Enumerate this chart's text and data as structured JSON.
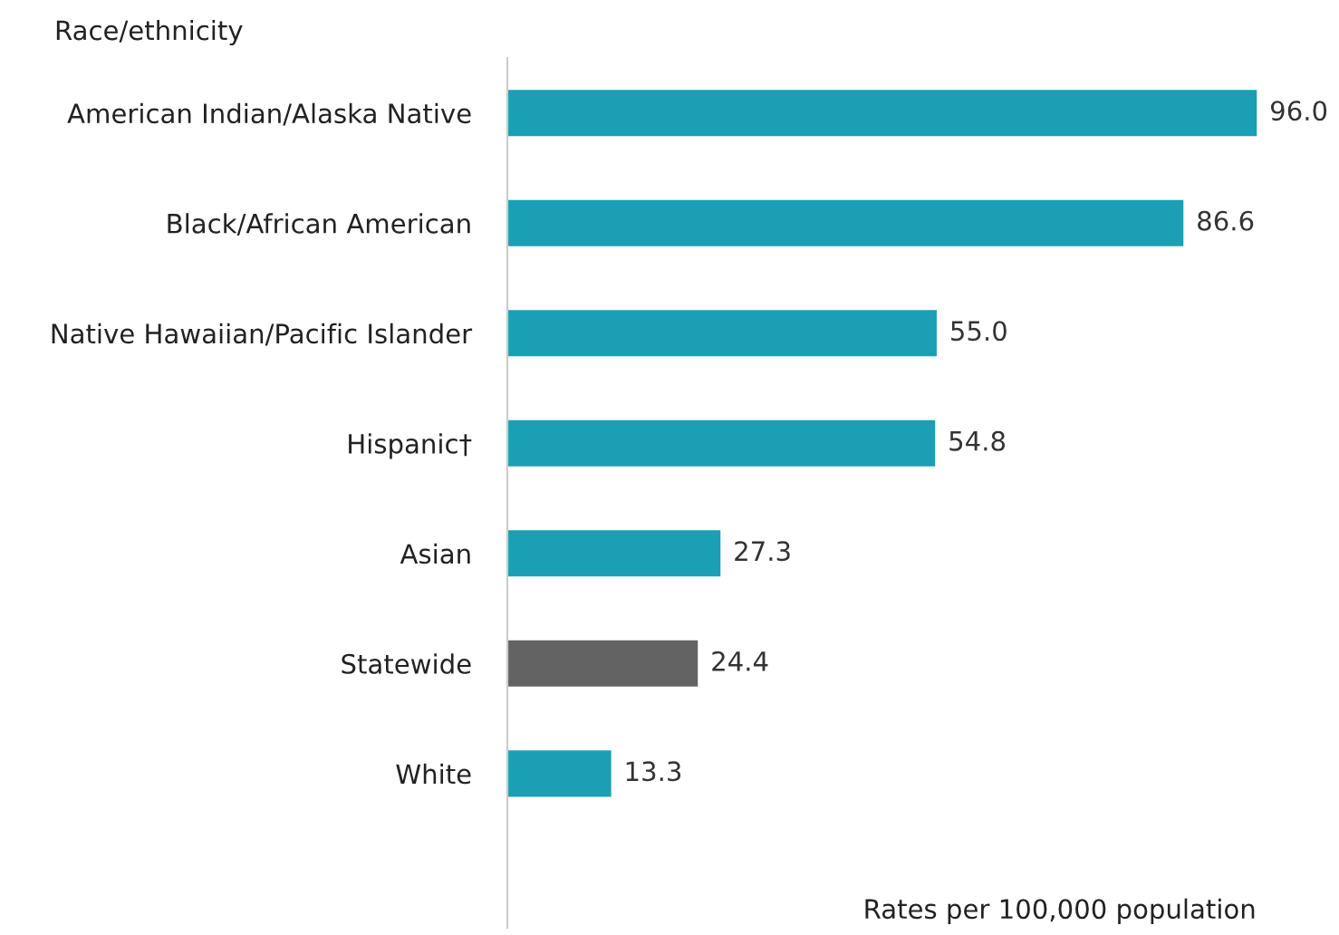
{
  "chart_data": {
    "type": "bar",
    "orientation": "horizontal",
    "ylabel": "Race/ethnicity",
    "xlabel": "Rates per 100,000 population",
    "categories": [
      "American Indian/Alaska Native",
      "Black/African American",
      "Native Hawaiian/Pacific Islander",
      "Hispanic†",
      "Asian",
      "Statewide",
      "White"
    ],
    "values": [
      96.0,
      86.6,
      55.0,
      54.8,
      27.3,
      24.4,
      13.3
    ],
    "colors": [
      "#1a9fb4",
      "#1a9fb4",
      "#1a9fb4",
      "#1a9fb4",
      "#1a9fb4",
      "#636363",
      "#1a9fb4"
    ],
    "value_labels": [
      "96.0",
      "86.6",
      "55.0",
      "54.8",
      "27.3",
      "24.4",
      "13.3"
    ],
    "grid": false,
    "legend": false
  }
}
